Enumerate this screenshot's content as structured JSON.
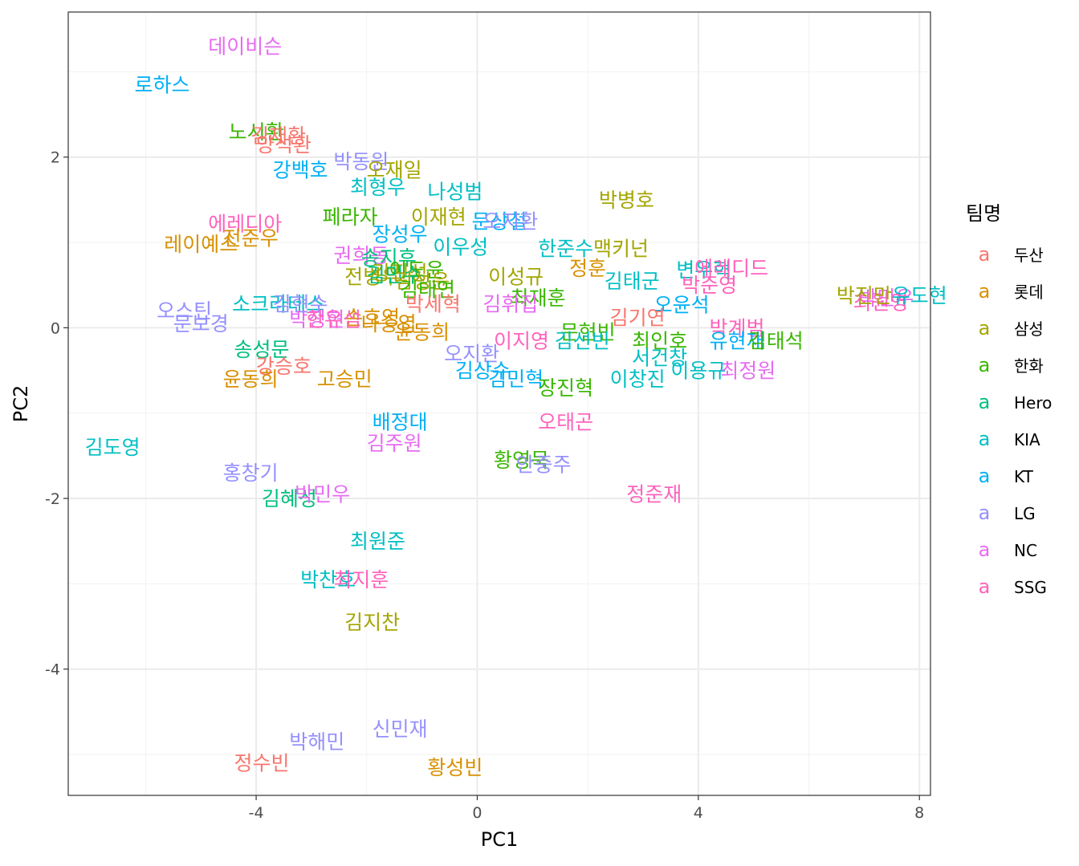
{
  "chart_data": {
    "type": "scatter",
    "xlabel": "PC1",
    "ylabel": "PC2",
    "xlim": [
      -7.4,
      8.2
    ],
    "ylim": [
      -5.48,
      3.7
    ],
    "x_ticks": [
      -4,
      0,
      4,
      8
    ],
    "y_ticks": [
      -4,
      -2,
      0,
      2
    ],
    "x_tick_labels": [
      "-4",
      "0",
      "4",
      "8"
    ],
    "y_tick_labels": [
      "-4",
      "-2",
      "0",
      "2"
    ],
    "grid": true,
    "legend_position": "right",
    "legend": {
      "title": "팀명",
      "glyph": "a",
      "entries": [
        {
          "team": "두산",
          "color": "#F8766D"
        },
        {
          "team": "롯데",
          "color": "#D89000"
        },
        {
          "team": "삼성",
          "color": "#A3A500"
        },
        {
          "team": "한화",
          "color": "#39B600"
        },
        {
          "team": "Hero",
          "color": "#00BF7D"
        },
        {
          "team": "KIA",
          "color": "#00BFC4"
        },
        {
          "team": "KT",
          "color": "#00B0F6"
        },
        {
          "team": "LG",
          "color": "#9590FF"
        },
        {
          "team": "NC",
          "color": "#E76BF3"
        },
        {
          "team": "SSG",
          "color": "#FF62BC"
        }
      ]
    },
    "points": [
      {
        "label": "데이비슨",
        "team": "NC",
        "x": -4.2,
        "y": 3.3
      },
      {
        "label": "로하스",
        "team": "KT",
        "x": -5.7,
        "y": 2.85
      },
      {
        "label": "노시환",
        "team": "한화",
        "x": -4.0,
        "y": 2.3
      },
      {
        "label": "김재환",
        "team": "두산",
        "x": -3.6,
        "y": 2.25
      },
      {
        "label": "양석환",
        "team": "두산",
        "x": -3.5,
        "y": 2.15
      },
      {
        "label": "강백호",
        "team": "KT",
        "x": -3.2,
        "y": 1.85
      },
      {
        "label": "박동원",
        "team": "LG",
        "x": -2.1,
        "y": 1.95
      },
      {
        "label": "오재일",
        "team": "삼성",
        "x": -1.5,
        "y": 1.85
      },
      {
        "label": "최형우",
        "team": "KIA",
        "x": -1.8,
        "y": 1.65
      },
      {
        "label": "나성범",
        "team": "KIA",
        "x": -0.4,
        "y": 1.6
      },
      {
        "label": "박병호",
        "team": "삼성",
        "x": 2.7,
        "y": 1.5
      },
      {
        "label": "에레디아",
        "team": "SSG",
        "x": -4.2,
        "y": 1.22
      },
      {
        "label": "레이예스",
        "team": "롯데",
        "x": -5.0,
        "y": 0.98
      },
      {
        "label": "전준우",
        "team": "롯데",
        "x": -4.1,
        "y": 1.05
      },
      {
        "label": "페라자",
        "team": "한화",
        "x": -2.3,
        "y": 1.3
      },
      {
        "label": "이재현",
        "team": "삼성",
        "x": -0.7,
        "y": 1.3
      },
      {
        "label": "문상철",
        "team": "KT",
        "x": 0.4,
        "y": 1.25
      },
      {
        "label": "오지환",
        "team": "LG",
        "x": 0.6,
        "y": 1.25
      },
      {
        "label": "장성우",
        "team": "KT",
        "x": -1.4,
        "y": 1.1
      },
      {
        "label": "이우성",
        "team": "KIA",
        "x": -0.3,
        "y": 0.95
      },
      {
        "label": "한준수",
        "team": "KIA",
        "x": 1.6,
        "y": 0.93
      },
      {
        "label": "맥키넌",
        "team": "삼성",
        "x": 2.6,
        "y": 0.93
      },
      {
        "label": "권희동",
        "team": "NC",
        "x": -2.1,
        "y": 0.85
      },
      {
        "label": "송지후",
        "team": "Hero",
        "x": -1.6,
        "y": 0.82
      },
      {
        "label": "강진성",
        "team": "삼성",
        "x": -1.4,
        "y": 0.65
      },
      {
        "label": "이도윤",
        "team": "한화",
        "x": -1.1,
        "y": 0.68
      },
      {
        "label": "전병우",
        "team": "삼성",
        "x": -1.9,
        "y": 0.6
      },
      {
        "label": "김민수",
        "team": "Hero",
        "x": -1.5,
        "y": 0.62
      },
      {
        "label": "김성윤",
        "team": "삼성",
        "x": -1.0,
        "y": 0.55
      },
      {
        "label": "이성규",
        "team": "삼성",
        "x": 0.7,
        "y": 0.6
      },
      {
        "label": "정훈",
        "team": "롯데",
        "x": 2.0,
        "y": 0.7
      },
      {
        "label": "변우혁",
        "team": "KIA",
        "x": 4.1,
        "y": 0.68
      },
      {
        "label": "에레디드",
        "team": "SSG",
        "x": 4.6,
        "y": 0.7
      },
      {
        "label": "김태군",
        "team": "KIA",
        "x": 2.8,
        "y": 0.55
      },
      {
        "label": "박준영",
        "team": "SSG",
        "x": 4.2,
        "y": 0.5
      },
      {
        "label": "김태연",
        "team": "한화",
        "x": -0.9,
        "y": 0.45
      },
      {
        "label": "최재훈",
        "team": "한화",
        "x": 1.1,
        "y": 0.35
      },
      {
        "label": "김휘집",
        "team": "NC",
        "x": 0.6,
        "y": 0.28
      },
      {
        "label": "박세혁",
        "team": "두산",
        "x": -0.8,
        "y": 0.28
      },
      {
        "label": "오윤석",
        "team": "KT",
        "x": 3.7,
        "y": 0.27
      },
      {
        "label": "오스틴",
        "team": "LG",
        "x": -5.3,
        "y": 0.2
      },
      {
        "label": "소크라테스",
        "team": "KIA",
        "x": -3.6,
        "y": 0.28
      },
      {
        "label": "김현수",
        "team": "LG",
        "x": -3.2,
        "y": 0.28
      },
      {
        "label": "문보경",
        "team": "LG",
        "x": -5.0,
        "y": 0.05
      },
      {
        "label": "박정현",
        "team": "NC",
        "x": -2.9,
        "y": 0.1
      },
      {
        "label": "손호영",
        "team": "롯데",
        "x": -1.9,
        "y": 0.12
      },
      {
        "label": "나승엽",
        "team": "롯데",
        "x": -1.6,
        "y": 0.05
      },
      {
        "label": "한유섬",
        "team": "SSG",
        "x": -2.6,
        "y": 0.1
      },
      {
        "label": "윤동희",
        "team": "롯데",
        "x": -1.0,
        "y": -0.05
      },
      {
        "label": "박민우",
        "team": "NC",
        "x": 7.4,
        "y": 0.35
      },
      {
        "label": "최원영",
        "team": "SSG",
        "x": 7.3,
        "y": 0.3
      },
      {
        "label": "유도현",
        "team": "KIA",
        "x": 8.0,
        "y": 0.38
      },
      {
        "label": "박진만",
        "team": "삼성",
        "x": 7.0,
        "y": 0.38
      },
      {
        "label": "김기연",
        "team": "두산",
        "x": 2.9,
        "y": 0.12
      },
      {
        "label": "박계범",
        "team": "SSG",
        "x": 4.7,
        "y": 0.0
      },
      {
        "label": "문현빈",
        "team": "한화",
        "x": 2.0,
        "y": -0.05
      },
      {
        "label": "이지영",
        "team": "SSG",
        "x": 0.8,
        "y": -0.15
      },
      {
        "label": "김선빈",
        "team": "KIA",
        "x": 1.9,
        "y": -0.15
      },
      {
        "label": "최인호",
        "team": "한화",
        "x": 3.3,
        "y": -0.15
      },
      {
        "label": "유현재",
        "team": "KT",
        "x": 4.7,
        "y": -0.15
      },
      {
        "label": "김태석",
        "team": "한화",
        "x": 5.4,
        "y": -0.15
      },
      {
        "label": "오지환",
        "team": "LG",
        "x": -0.1,
        "y": -0.3
      },
      {
        "label": "서건창",
        "team": "KIA",
        "x": 3.3,
        "y": -0.35
      },
      {
        "label": "송성문",
        "team": "Hero",
        "x": -3.9,
        "y": -0.25
      },
      {
        "label": "강승호",
        "team": "두산",
        "x": -3.5,
        "y": -0.45
      },
      {
        "label": "김상수",
        "team": "KT",
        "x": 0.1,
        "y": -0.5
      },
      {
        "label": "이용규",
        "team": "KIA",
        "x": 4.0,
        "y": -0.5
      },
      {
        "label": "최정원",
        "team": "NC",
        "x": 4.9,
        "y": -0.5
      },
      {
        "label": "윤동희",
        "team": "롯데",
        "x": -4.1,
        "y": -0.6
      },
      {
        "label": "고승민",
        "team": "롯데",
        "x": -2.4,
        "y": -0.6
      },
      {
        "label": "김민혁",
        "team": "KT",
        "x": 0.7,
        "y": -0.6
      },
      {
        "label": "이창진",
        "team": "KIA",
        "x": 2.9,
        "y": -0.6
      },
      {
        "label": "장진혁",
        "team": "한화",
        "x": 1.6,
        "y": -0.7
      },
      {
        "label": "배정대",
        "team": "KT",
        "x": -1.4,
        "y": -1.1
      },
      {
        "label": "오태곤",
        "team": "SSG",
        "x": 1.6,
        "y": -1.1
      },
      {
        "label": "김도영",
        "team": "KIA",
        "x": -6.6,
        "y": -1.4
      },
      {
        "label": "김주원",
        "team": "NC",
        "x": -1.5,
        "y": -1.35
      },
      {
        "label": "황영묵",
        "team": "한화",
        "x": 0.8,
        "y": -1.55
      },
      {
        "label": "안중주",
        "team": "LG",
        "x": 1.2,
        "y": -1.6
      },
      {
        "label": "홍창기",
        "team": "LG",
        "x": -4.1,
        "y": -1.7
      },
      {
        "label": "김혜성",
        "team": "Hero",
        "x": -3.4,
        "y": -2.0
      },
      {
        "label": "박민우",
        "team": "NC",
        "x": -2.8,
        "y": -1.95
      },
      {
        "label": "정준재",
        "team": "SSG",
        "x": 3.2,
        "y": -1.95
      },
      {
        "label": "최원준",
        "team": "KIA",
        "x": -1.8,
        "y": -2.5
      },
      {
        "label": "박찬호",
        "team": "KIA",
        "x": -2.7,
        "y": -2.95
      },
      {
        "label": "최지훈",
        "team": "SSG",
        "x": -2.1,
        "y": -2.95
      },
      {
        "label": "김지찬",
        "team": "삼성",
        "x": -1.9,
        "y": -3.45
      },
      {
        "label": "신민재",
        "team": "LG",
        "x": -1.4,
        "y": -4.7
      },
      {
        "label": "박해민",
        "team": "LG",
        "x": -2.9,
        "y": -4.85
      },
      {
        "label": "정수빈",
        "team": "두산",
        "x": -3.9,
        "y": -5.1
      },
      {
        "label": "황성빈",
        "team": "롯데",
        "x": -0.4,
        "y": -5.15
      }
    ]
  }
}
